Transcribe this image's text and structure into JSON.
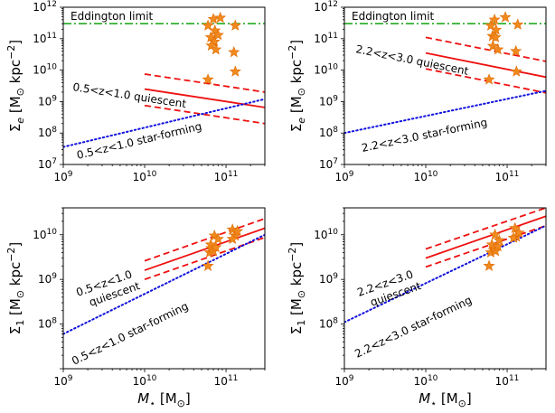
{
  "figure": {
    "ylabel_top": "Σ_e [M_⊙ kpc^-2]",
    "ylabel_bottom": "Σ_1 [M_⊙ kpc^-2]",
    "xlabel": "M_⋆ [M_⊙]"
  },
  "colors": {
    "quiescent": "#ee1111",
    "star_forming": "#1111dd",
    "eddington": "#22aa22",
    "stars": "#f08a1e",
    "star_edge": "#e06a00"
  },
  "chart_data": [
    {
      "id": "top_left",
      "type": "scatter",
      "xscale": "log",
      "yscale": "log",
      "xlim": [
        1000000000.0,
        300000000000.0
      ],
      "ylim": [
        10000000.0,
        1000000000000.0
      ],
      "xticks": [
        1000000000.0,
        10000000000.0,
        100000000000.0
      ],
      "yticks": [
        10000000.0,
        100000000.0,
        1000000000.0,
        10000000000.0,
        100000000000.0,
        1000000000000.0
      ],
      "xtick_labels": [
        "10^9",
        "10^10",
        "10^11"
      ],
      "ytick_labels": [
        "10^7",
        "10^8",
        "10^9",
        "10^10",
        "10^11",
        "10^12"
      ],
      "show_xticklabels": true,
      "hline": {
        "y": 300000000000.0,
        "label": "Eddington limit"
      },
      "quiescent": {
        "label": "0.5<z<1.0 quiescent",
        "x": [
          10000000000.0,
          300000000000.0
        ],
        "y": [
          2500000000.0,
          650000000.0
        ],
        "lower": [
          750000000.0,
          200000000.0
        ],
        "upper": [
          7500000000.0,
          2000000000.0
        ]
      },
      "star_forming": {
        "label": "0.5<z<1.0 star-forming",
        "x": [
          1000000000.0,
          300000000000.0
        ],
        "y": [
          36000000.0,
          1200000000.0
        ]
      },
      "points": [
        [
          60000000000.0,
          260000000000.0
        ],
        [
          70000000000.0,
          420000000000.0
        ],
        [
          85000000000.0,
          460000000000.0
        ],
        [
          73000000000.0,
          180000000000.0
        ],
        [
          65000000000.0,
          110000000000.0
        ],
        [
          72000000000.0,
          80000000000.0
        ],
        [
          80000000000.0,
          130000000000.0
        ],
        [
          66000000000.0,
          60000000000.0
        ],
        [
          75000000000.0,
          45000000000.0
        ],
        [
          130000000000.0,
          260000000000.0
        ],
        [
          125000000000.0,
          37000000000.0
        ],
        [
          130000000000.0,
          9000000000.0
        ],
        [
          60000000000.0,
          5000000000.0
        ]
      ]
    },
    {
      "id": "top_right",
      "type": "scatter",
      "xscale": "log",
      "yscale": "log",
      "xlim": [
        1000000000.0,
        300000000000.0
      ],
      "ylim": [
        10000000.0,
        1000000000000.0
      ],
      "xticks": [
        1000000000.0,
        10000000000.0,
        100000000000.0
      ],
      "yticks": [
        10000000.0,
        100000000.0,
        1000000000.0,
        10000000000.0,
        100000000000.0,
        1000000000000.0
      ],
      "xtick_labels": [
        "10^9",
        "10^10",
        "10^11"
      ],
      "ytick_labels": [
        "10^7",
        "10^8",
        "10^9",
        "10^10",
        "10^11",
        "10^12"
      ],
      "show_xticklabels": true,
      "hline": {
        "y": 300000000000.0,
        "label": "Eddington limit"
      },
      "quiescent": {
        "label": "2.2<z<3.0 quiescent",
        "x": [
          10000000000.0,
          300000000000.0
        ],
        "y": [
          35000000000.0,
          6000000000.0
        ],
        "lower": [
          11000000000.0,
          1900000000.0
        ],
        "upper": [
          110000000000.0,
          19000000000.0
        ]
      },
      "star_forming": {
        "label": "2.2<z<3.0 star-forming",
        "x": [
          1000000000.0,
          300000000000.0
        ],
        "y": [
          100000000.0,
          2200000000.0
        ]
      },
      "points": [
        [
          63000000000.0,
          260000000000.0
        ],
        [
          70000000000.0,
          400000000000.0
        ],
        [
          95000000000.0,
          480000000000.0
        ],
        [
          73000000000.0,
          190000000000.0
        ],
        [
          66000000000.0,
          120000000000.0
        ],
        [
          72000000000.0,
          110000000000.0
        ],
        [
          67000000000.0,
          58000000000.0
        ],
        [
          77000000000.0,
          45000000000.0
        ],
        [
          135000000000.0,
          280000000000.0
        ],
        [
          128000000000.0,
          40000000000.0
        ],
        [
          130000000000.0,
          9000000000.0
        ],
        [
          60000000000.0,
          5000000000.0
        ]
      ]
    },
    {
      "id": "bottom_left",
      "type": "scatter",
      "xscale": "log",
      "yscale": "log",
      "xlim": [
        1000000000.0,
        300000000000.0
      ],
      "ylim": [
        10000000.0,
        40000000000.0
      ],
      "xticks": [
        1000000000.0,
        10000000000.0,
        100000000000.0
      ],
      "yticks": [
        100000000.0,
        1000000000.0,
        10000000000.0
      ],
      "xtick_labels": [
        "10^9",
        "10^10",
        "10^11"
      ],
      "ytick_labels": [
        "10^8",
        "10^9",
        "10^10"
      ],
      "show_xticklabels": true,
      "quiescent": {
        "label_lines": [
          "0.5<z<1.0",
          "quiescent"
        ],
        "x": [
          10000000000.0,
          300000000000.0
        ],
        "y": [
          1600000000.0,
          14000000000.0
        ],
        "lower": [
          1000000000.0,
          8700000000.0
        ],
        "upper": [
          2600000000.0,
          23000000000.0
        ]
      },
      "star_forming": {
        "label": "0.5<z<1.0 star-forming",
        "x": [
          1000000000.0,
          300000000000.0
        ],
        "y": [
          60000000.0,
          10000000000.0
        ]
      },
      "points": [
        [
          60000000000.0,
          2000000000.0
        ],
        [
          63000000000.0,
          4000000000.0
        ],
        [
          66000000000.0,
          5000000000.0
        ],
        [
          65000000000.0,
          6000000000.0
        ],
        [
          70000000000.0,
          4300000000.0
        ],
        [
          75000000000.0,
          5200000000.0
        ],
        [
          72000000000.0,
          9500000000.0
        ],
        [
          80000000000.0,
          8000000000.0
        ],
        [
          120000000000.0,
          13000000000.0
        ],
        [
          130000000000.0,
          9500000000.0
        ],
        [
          120000000000.0,
          8000000000.0
        ],
        [
          138000000000.0,
          12000000000.0
        ]
      ]
    },
    {
      "id": "bottom_right",
      "type": "scatter",
      "xscale": "log",
      "yscale": "log",
      "xlim": [
        1000000000.0,
        300000000000.0
      ],
      "ylim": [
        10000000.0,
        40000000000.0
      ],
      "xticks": [
        1000000000.0,
        10000000000.0,
        100000000000.0
      ],
      "yticks": [
        100000000.0,
        1000000000.0,
        10000000000.0
      ],
      "xtick_labels": [
        "10^9",
        "10^10",
        "10^11"
      ],
      "ytick_labels": [
        "10^8",
        "10^9",
        "10^10"
      ],
      "show_xticklabels": true,
      "quiescent": {
        "label_lines": [
          "2.2<z<3.0",
          "quiescent"
        ],
        "x": [
          10000000000.0,
          300000000000.0
        ],
        "y": [
          3000000000.0,
          26000000000.0
        ],
        "lower": [
          1900000000.0,
          16000000000.0
        ],
        "upper": [
          4800000000.0,
          40000000000.0
        ]
      },
      "star_forming": {
        "label": "2.2<z<3.0 star-forming",
        "x": [
          1000000000.0,
          300000000000.0
        ],
        "y": [
          110000000.0,
          16000000000.0
        ]
      },
      "points": [
        [
          60000000000.0,
          2000000000.0
        ],
        [
          63000000000.0,
          4000000000.0
        ],
        [
          70000000000.0,
          5000000000.0
        ],
        [
          65000000000.0,
          6000000000.0
        ],
        [
          72000000000.0,
          4300000000.0
        ],
        [
          77000000000.0,
          5500000000.0
        ],
        [
          71000000000.0,
          10000000000.0
        ],
        [
          80000000000.0,
          7500000000.0
        ],
        [
          125000000000.0,
          14000000000.0
        ],
        [
          130000000000.0,
          9000000000.0
        ],
        [
          120000000000.0,
          8500000000.0
        ],
        [
          140000000000.0,
          11000000000.0
        ]
      ]
    }
  ]
}
